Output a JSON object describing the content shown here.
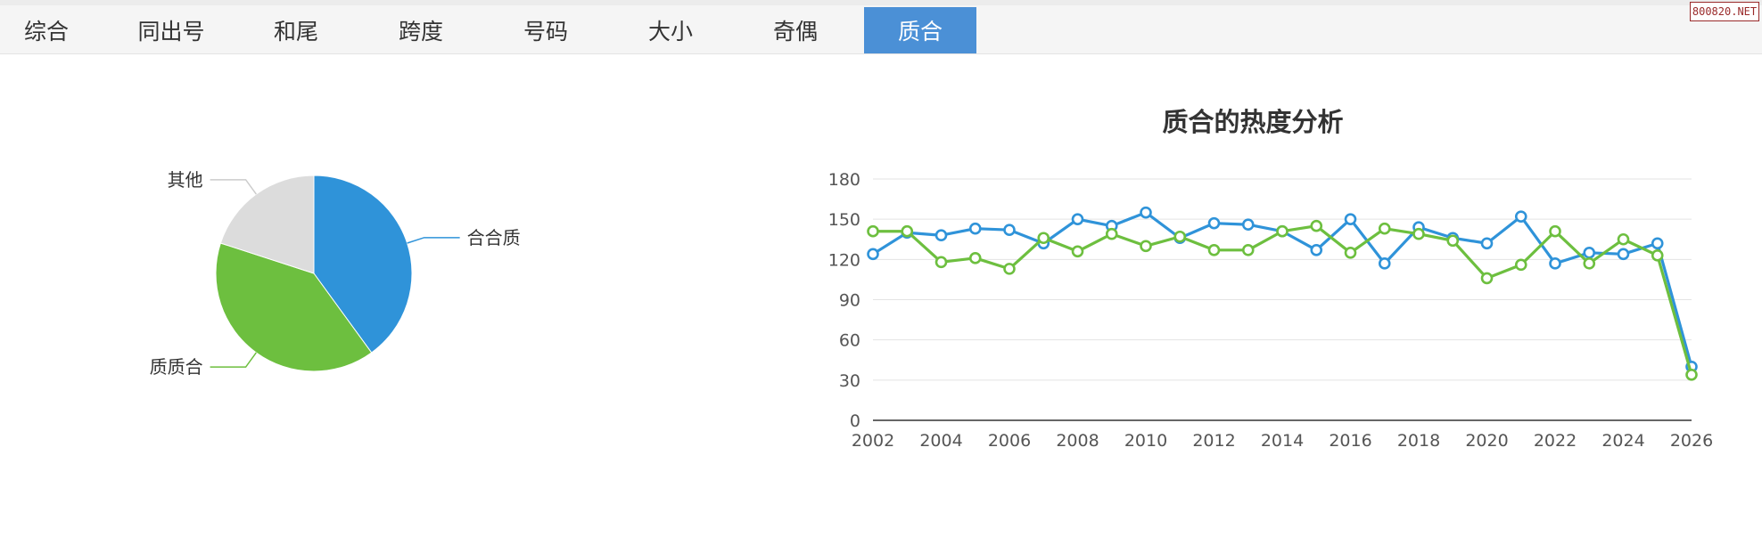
{
  "watermark": "800820.NET",
  "tabs": [
    {
      "label": "综合",
      "active": false
    },
    {
      "label": "同出号",
      "active": false
    },
    {
      "label": "和尾",
      "active": false
    },
    {
      "label": "跨度",
      "active": false
    },
    {
      "label": "号码",
      "active": false
    },
    {
      "label": "大小",
      "active": false
    },
    {
      "label": "奇偶",
      "active": false
    },
    {
      "label": "质合",
      "active": true
    }
  ],
  "colors": {
    "blue": "#2f93d9",
    "green": "#6dbf3f",
    "gray": "#dcdcdc",
    "active_tab": "#4b90d6",
    "grid": "#e3e3e3"
  },
  "chart_data": [
    {
      "type": "pie",
      "title": "",
      "slices": [
        {
          "label": "合合质",
          "value": 40,
          "color": "#2f93d9"
        },
        {
          "label": "质质合",
          "value": 40,
          "color": "#6dbf3f"
        },
        {
          "label": "其他",
          "value": 20,
          "color": "#dcdcdc"
        }
      ]
    },
    {
      "type": "line",
      "title": "质合的热度分析",
      "xlabel": "",
      "ylabel": "",
      "ylim": [
        0,
        180
      ],
      "yticks": [
        0,
        30,
        60,
        90,
        120,
        150,
        180
      ],
      "xlim": [
        2002,
        2026
      ],
      "xticks": [
        2002,
        2004,
        2006,
        2008,
        2010,
        2012,
        2014,
        2016,
        2018,
        2020,
        2022,
        2024,
        2026
      ],
      "grid": true,
      "legend": "none",
      "x": [
        2002,
        2003,
        2004,
        2005,
        2006,
        2007,
        2008,
        2009,
        2010,
        2011,
        2012,
        2013,
        2014,
        2015,
        2016,
        2017,
        2018,
        2019,
        2020,
        2021,
        2022,
        2023,
        2024,
        2025,
        2026
      ],
      "series": [
        {
          "color": "#2f93d9",
          "values": [
            124,
            140,
            138,
            143,
            142,
            132,
            150,
            145,
            155,
            136,
            147,
            146,
            141,
            127,
            150,
            117,
            144,
            136,
            132,
            152,
            117,
            125,
            124,
            132,
            40
          ]
        },
        {
          "color": "#6dbf3f",
          "values": [
            141,
            141,
            118,
            121,
            113,
            136,
            126,
            139,
            130,
            137,
            127,
            127,
            141,
            145,
            125,
            143,
            139,
            134,
            106,
            116,
            141,
            117,
            135,
            123,
            34
          ]
        }
      ]
    }
  ]
}
